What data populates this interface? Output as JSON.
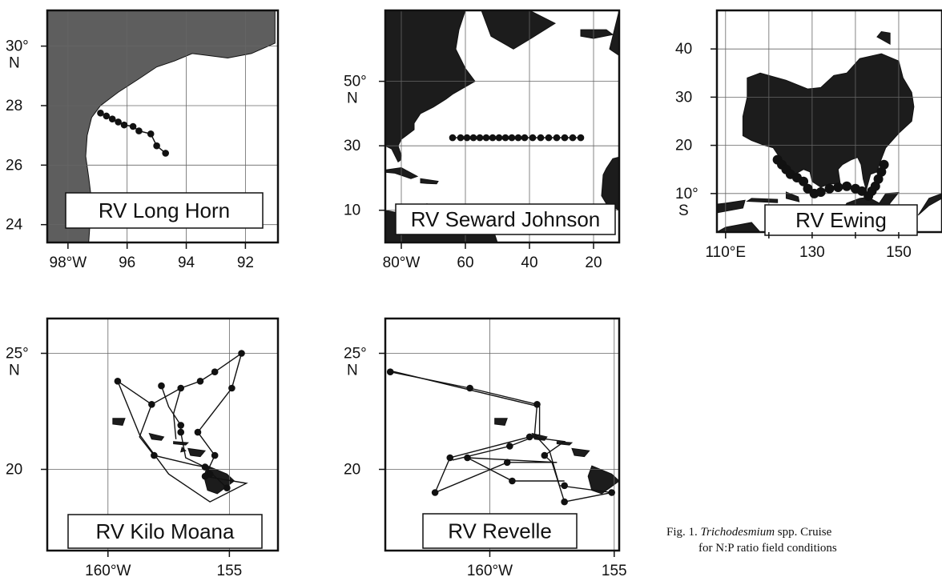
{
  "maps": [
    {
      "id": "long-horn",
      "label": "RV Long Horn",
      "x_ticks": [
        "98°W",
        "96",
        "94",
        "92"
      ],
      "y_ticks": [
        [
          "30°",
          "N"
        ],
        [
          "28"
        ],
        [
          "26"
        ],
        [
          "24"
        ]
      ],
      "stations": [
        [
          -96.9,
          27.75
        ],
        [
          -96.7,
          27.65
        ],
        [
          -96.5,
          27.55
        ],
        [
          -96.3,
          27.45
        ],
        [
          -96.1,
          27.35
        ],
        [
          -95.8,
          27.3
        ],
        [
          -95.6,
          27.15
        ],
        [
          -95.2,
          27.05
        ],
        [
          -95.0,
          26.65
        ],
        [
          -94.7,
          26.4
        ]
      ]
    },
    {
      "id": "seward-johnson",
      "label": "RV Seward Johnson",
      "x_ticks": [
        "80°W",
        "60",
        "40",
        "20"
      ],
      "y_ticks": [
        [
          "50°",
          "N"
        ],
        [
          "30"
        ],
        [
          "10"
        ]
      ],
      "stations": [
        [
          -64,
          32.5
        ],
        [
          -61.5,
          32.5
        ],
        [
          -59.5,
          32.5
        ],
        [
          -57.5,
          32.5
        ],
        [
          -55.5,
          32.5
        ],
        [
          -53.5,
          32.5
        ],
        [
          -51.5,
          32.5
        ],
        [
          -49.5,
          32.5
        ],
        [
          -47.5,
          32.5
        ],
        [
          -45.5,
          32.5
        ],
        [
          -43.5,
          32.5
        ],
        [
          -41.5,
          32.5
        ],
        [
          -39,
          32.5
        ],
        [
          -36.5,
          32.5
        ],
        [
          -34,
          32.5
        ],
        [
          -31.5,
          32.5
        ],
        [
          -29,
          32.5
        ],
        [
          -26.5,
          32.5
        ],
        [
          -24,
          32.5
        ]
      ]
    },
    {
      "id": "ewing",
      "label": "RV Ewing",
      "x_ticks": [
        "110°E",
        "130",
        "150"
      ],
      "y_ticks": [
        [
          "10°",
          "S"
        ],
        [
          "20"
        ],
        [
          "30"
        ],
        [
          "40"
        ]
      ],
      "stations": [
        [
          122,
          -17
        ],
        [
          123,
          -16
        ],
        [
          124,
          -15
        ],
        [
          125,
          -14
        ],
        [
          126.5,
          -13.3
        ],
        [
          128,
          -12.5
        ],
        [
          129,
          -11
        ],
        [
          130.5,
          -10
        ],
        [
          132,
          -10.3
        ],
        [
          134,
          -11
        ],
        [
          136,
          -11.3
        ],
        [
          138,
          -11.5
        ],
        [
          140,
          -11
        ],
        [
          141.5,
          -10.5
        ],
        [
          143,
          -9.5
        ],
        [
          143.8,
          -10.5
        ],
        [
          144.6,
          -11.5
        ],
        [
          145.3,
          -13
        ],
        [
          146,
          -14.5
        ],
        [
          146.6,
          -16
        ]
      ]
    },
    {
      "id": "kilo-moana",
      "label": "RV Kilo Moana",
      "x_ticks": [
        "160°W",
        "155"
      ],
      "y_ticks": [
        [
          "25°",
          "N"
        ],
        [
          "20"
        ]
      ],
      "stations": [
        [
          -159.6,
          23.8
        ],
        [
          -158.2,
          22.8
        ],
        [
          -157.8,
          23.6
        ],
        [
          -157.0,
          23.5
        ],
        [
          -156.2,
          23.8
        ],
        [
          -155.6,
          24.2
        ],
        [
          -154.5,
          25.0
        ],
        [
          -154.9,
          23.5
        ],
        [
          -157.0,
          21.9
        ],
        [
          -157.0,
          21.6
        ],
        [
          -156.3,
          21.6
        ],
        [
          -158.1,
          20.6
        ],
        [
          -156.0,
          20.1
        ],
        [
          -155.6,
          20.6
        ],
        [
          -155.8,
          19.8
        ],
        [
          -156.0,
          19.7
        ],
        [
          -155.1,
          19.2
        ]
      ],
      "routes": [
        [
          [
            -159.6,
            23.8
          ],
          [
            -158.2,
            22.8
          ],
          [
            -157.0,
            23.5
          ],
          [
            -156.2,
            23.8
          ],
          [
            -155.6,
            24.2
          ],
          [
            -154.5,
            25.0
          ],
          [
            -154.9,
            23.5
          ],
          [
            -156.3,
            21.6
          ],
          [
            -155.6,
            20.6
          ],
          [
            -156.0,
            19.7
          ],
          [
            -154.3,
            19.4
          ],
          [
            -155.8,
            18.6
          ],
          [
            -157.5,
            19.8
          ],
          [
            -158.7,
            21.5
          ],
          [
            -159.6,
            23.8
          ]
        ],
        [
          [
            -158.2,
            22.8
          ],
          [
            -158.7,
            21.4
          ],
          [
            -158.1,
            20.6
          ],
          [
            -156.5,
            20.2
          ],
          [
            -156.0,
            20.1
          ]
        ],
        [
          [
            -157.8,
            23.6
          ],
          [
            -157.5,
            22.7
          ],
          [
            -157.0,
            21.9
          ],
          [
            -157.0,
            21.6
          ],
          [
            -156.8,
            20.5
          ],
          [
            -156.0,
            20.1
          ],
          [
            -155.1,
            19.2
          ]
        ],
        [
          [
            -157.0,
            23.5
          ],
          [
            -157.3,
            22.4
          ],
          [
            -157.2,
            21.3
          ]
        ]
      ]
    },
    {
      "id": "revelle",
      "label": "RV Revelle",
      "x_ticks": [
        "160°W",
        "155"
      ],
      "y_ticks": [
        [
          "25°",
          "N"
        ],
        [
          "20"
        ]
      ],
      "stations": [
        [
          -164.0,
          24.2
        ],
        [
          -160.8,
          23.5
        ],
        [
          -158.1,
          22.8
        ],
        [
          -158.4,
          21.4
        ],
        [
          -159.2,
          21.0
        ],
        [
          -161.6,
          20.5
        ],
        [
          -160.9,
          20.5
        ],
        [
          -159.3,
          20.3
        ],
        [
          -157.8,
          20.6
        ],
        [
          -162.2,
          19.0
        ],
        [
          -159.1,
          19.5
        ],
        [
          -157.0,
          19.3
        ],
        [
          -157.0,
          18.6
        ],
        [
          -155.1,
          19.0
        ]
      ],
      "routes": [
        [
          [
            -164.0,
            24.2
          ],
          [
            -160.8,
            23.5
          ],
          [
            -158.1,
            22.8
          ],
          [
            -158.2,
            21.5
          ],
          [
            -157.6,
            20.8
          ],
          [
            -157.2,
            19.3
          ],
          [
            -155.1,
            19.0
          ],
          [
            -157.0,
            18.6
          ],
          [
            -157.5,
            20.3
          ],
          [
            -157.8,
            20.6
          ],
          [
            -157.0,
            21.2
          ],
          [
            -158.4,
            21.4
          ],
          [
            -161.6,
            20.5
          ],
          [
            -162.2,
            19.0
          ],
          [
            -159.3,
            20.3
          ],
          [
            -157.3,
            20.3
          ],
          [
            -160.9,
            20.5
          ],
          [
            -159.1,
            19.5
          ],
          [
            -157.0,
            19.5
          ]
        ],
        [
          [
            -164.0,
            24.25
          ],
          [
            -158.0,
            22.7
          ],
          [
            -158.0,
            21.5
          ],
          [
            -159.2,
            21.0
          ],
          [
            -161.5,
            20.4
          ]
        ]
      ]
    }
  ],
  "caption": {
    "line1_prefix": "Fig. 1. ",
    "line1_italic": "Trichodesmium",
    "line1_rest": " spp. Cruise",
    "line2": "for N:P ratio field conditions"
  },
  "colors": {
    "land": "#1c1c1c",
    "gulf_land": "#5e5e5e",
    "ink": "#111111"
  }
}
